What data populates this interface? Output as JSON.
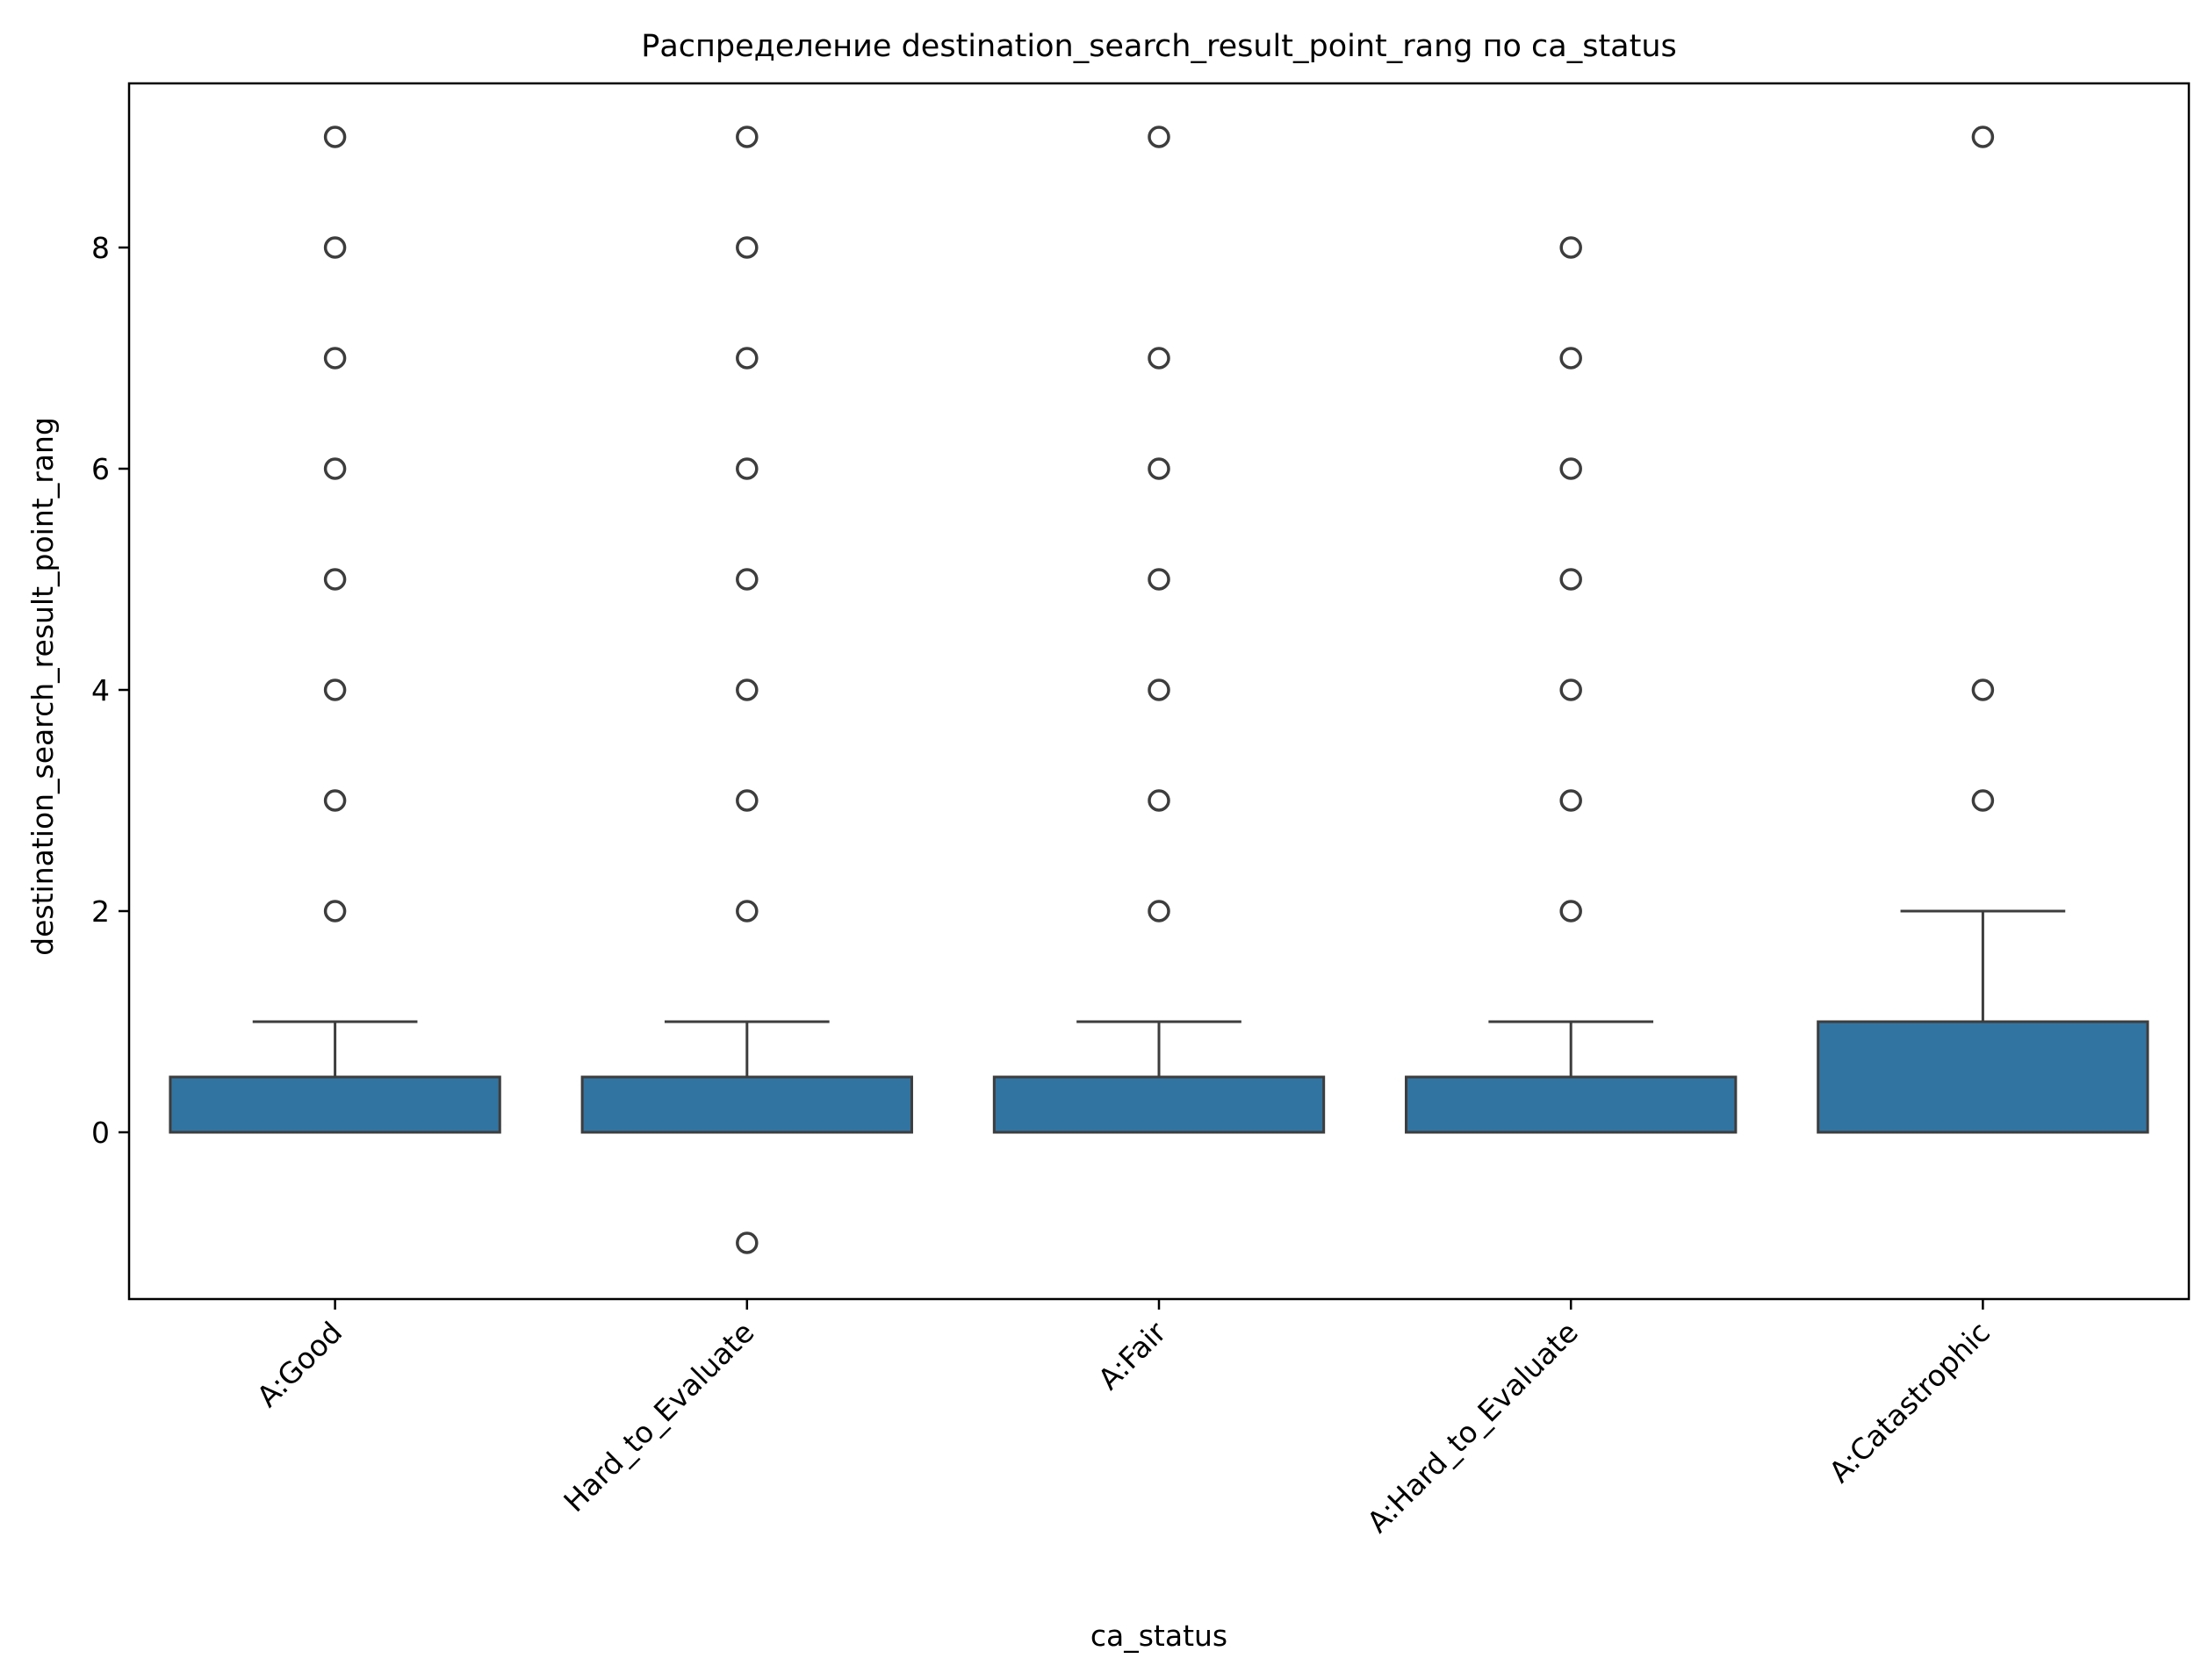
{
  "chart_data": {
    "type": "box",
    "title": "Распределение destination_search_result_point_rang по ca_status",
    "xlabel": "ca_status",
    "ylabel": "destination_search_result_point_rang",
    "ylim": [
      -1.5,
      9.5
    ],
    "yticks": [
      0,
      2,
      4,
      6,
      8
    ],
    "grid": false,
    "box_color": "#3274a1",
    "edge_color": "#3d3d3d",
    "categories": [
      "A:Good",
      "Hard_to_Evaluate",
      "A:Fair",
      "A:Hard_to_Evaluate",
      "A:Catastrophic"
    ],
    "boxes": [
      {
        "category": "A:Good",
        "whislo": 0,
        "q1": 0,
        "med": 0,
        "q3": 0.5,
        "whishi": 1,
        "fliers": [
          2,
          3,
          4,
          5,
          6,
          7,
          8,
          9
        ]
      },
      {
        "category": "Hard_to_Evaluate",
        "whislo": 0,
        "q1": 0,
        "med": 0,
        "q3": 0.5,
        "whishi": 1,
        "fliers": [
          -1,
          2,
          3,
          4,
          5,
          6,
          7,
          8,
          9
        ]
      },
      {
        "category": "A:Fair",
        "whislo": 0,
        "q1": 0,
        "med": 0,
        "q3": 0.5,
        "whishi": 1,
        "fliers": [
          2,
          3,
          4,
          5,
          6,
          7,
          9
        ]
      },
      {
        "category": "A:Hard_to_Evaluate",
        "whislo": 0,
        "q1": 0,
        "med": 0,
        "q3": 0.5,
        "whishi": 1,
        "fliers": [
          2,
          3,
          4,
          5,
          6,
          7,
          8
        ]
      },
      {
        "category": "A:Catastrophic",
        "whislo": 0,
        "q1": 0,
        "med": 0,
        "q3": 1,
        "whishi": 2,
        "fliers": [
          3,
          4,
          9
        ]
      }
    ]
  }
}
